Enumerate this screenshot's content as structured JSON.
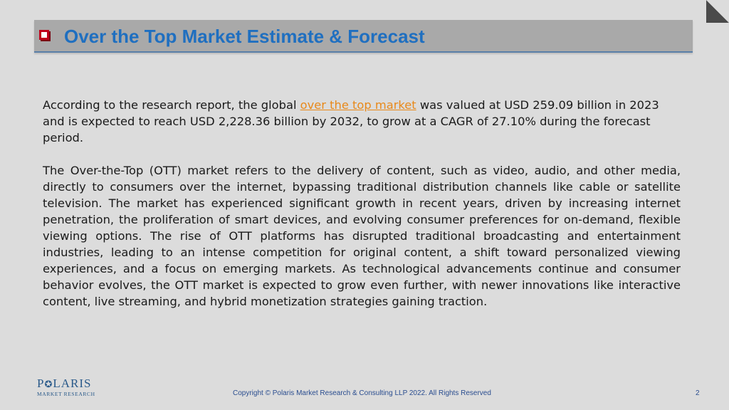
{
  "slide": {
    "title": "Over the Top Market Estimate & Forecast",
    "paragraph1": {
      "before_link": "According to the research report, the global ",
      "link_text": "over the top market",
      "after_link": " was valued at USD 259.09 billion in 2023 and is expected to reach USD 2,228.36 billion by 2032, to grow at a CAGR of 27.10% during the forecast period."
    },
    "paragraph2": "The Over-the-Top (OTT) market refers to the delivery of content, such as video, audio, and other media, directly to consumers over the internet, bypassing traditional distribution channels like cable or satellite television. The market has experienced significant growth in recent years, driven by increasing internet penetration, the proliferation of smart devices, and evolving consumer preferences for on-demand, flexible viewing options. The rise of OTT platforms has disrupted traditional broadcasting and entertainment industries, leading to an intense competition for original content, a shift toward personalized viewing experiences, and a focus on emerging markets. As technological advancements continue and consumer behavior evolves, the OTT market is expected to grow even further, with newer innovations like interactive content, live streaming, and hybrid monetization strategies gaining traction."
  },
  "logo": {
    "line1_start": "P",
    "line1_end": "LARIS",
    "line2": "MARKET RESEARCH",
    "icon": "star-o-icon"
  },
  "footer": {
    "copyright": "Copyright © Polaris Market Research & Consulting LLP 2022. All Rights Reserved",
    "page_number": "2"
  },
  "colors": {
    "title": "#1f6fc0",
    "link": "#e8891a",
    "bullet": "#c0001a",
    "footer": "#2a4d8f",
    "background": "#dcdcdc"
  }
}
